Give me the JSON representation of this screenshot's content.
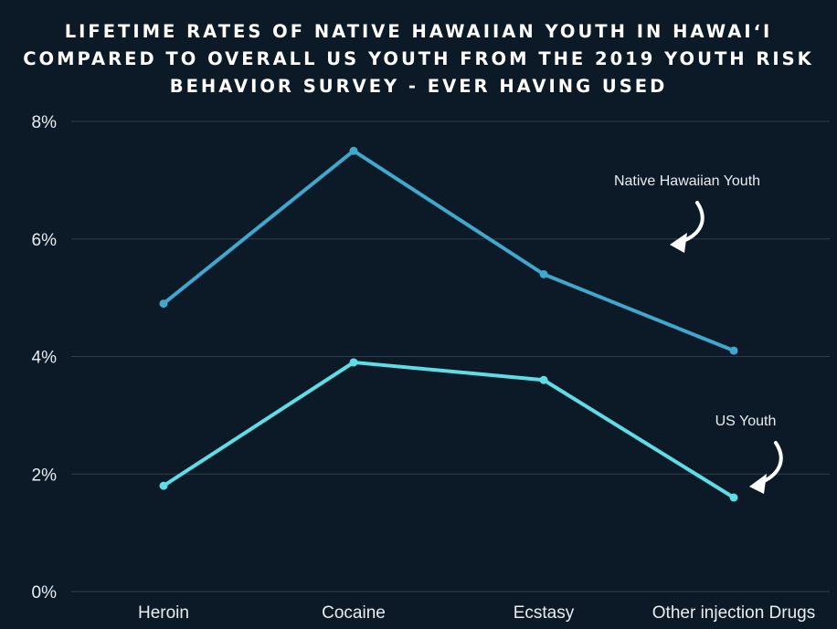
{
  "chart_data": {
    "type": "line",
    "title": "LIFETIME RATES OF NATIVE HAWAIIAN YOUTH IN HAWAIʻI COMPARED TO OVERALL US YOUTH FROM THE 2019 YOUTH RISK BEHAVIOR SURVEY - EVER HAVING USED",
    "categories": [
      "Heroin",
      "Cocaine",
      "Ecstasy",
      "Other injection Drugs"
    ],
    "series": [
      {
        "name": "Native Hawaiian Youth",
        "values": [
          4.9,
          7.5,
          5.4,
          4.1
        ],
        "color": "#3fa8cc"
      },
      {
        "name": "US Youth",
        "values": [
          1.8,
          3.9,
          3.6,
          1.6
        ],
        "color": "#5fdde6"
      }
    ],
    "yticks": [
      "0%",
      "2%",
      "4%",
      "6%",
      "8%"
    ],
    "ytick_values": [
      0,
      2,
      4,
      6,
      8
    ],
    "ylim": [
      0,
      8
    ],
    "xlabel": "",
    "ylabel": "",
    "grid": true,
    "legend": "inline-annotations",
    "colors": {
      "background": "#0c1a28",
      "grid": "#2e3d4d",
      "text": "#e8edf2"
    }
  }
}
